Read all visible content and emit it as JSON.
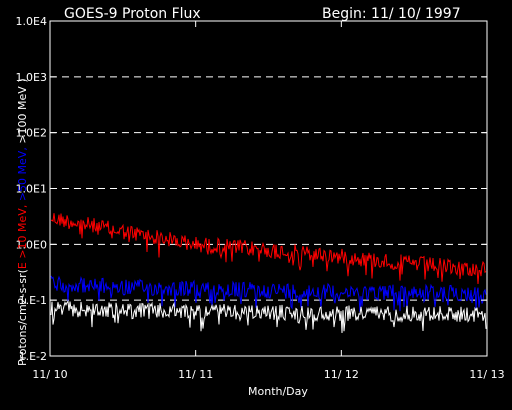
{
  "chart_data": {
    "type": "line",
    "title": "GOES-9 Proton Flux",
    "begin_label": "Begin: 11/ 10/ 1997",
    "xlabel": "Month/Day",
    "ylabel_parts": [
      {
        "text": "Protons/cm2-s-sr(",
        "color": "#ffffff"
      },
      {
        "text": "E >10 MeV, ",
        "color": "#ff0000"
      },
      {
        "text": ">50 MeV, ",
        "color": "#0000ff"
      },
      {
        "text": ">100 MeV )",
        "color": "#ffffff"
      }
    ],
    "y_scale": "log",
    "ylim": [
      0.01,
      10000
    ],
    "y_ticks": [
      {
        "value": 0.01,
        "label": "1.E-2"
      },
      {
        "value": 0.1,
        "label": "1.E-1"
      },
      {
        "value": 1,
        "label": "1.0E0"
      },
      {
        "value": 10,
        "label": "1.0E1"
      },
      {
        "value": 100,
        "label": "1.0E2"
      },
      {
        "value": 1000,
        "label": "1.0E3"
      },
      {
        "value": 10000,
        "label": "1.0E4"
      }
    ],
    "xlim": [
      "1997-11-10",
      "1997-11-13"
    ],
    "x_ticks": [
      {
        "value": "1997-11-10",
        "label": "11/ 10"
      },
      {
        "value": "1997-11-11",
        "label": "11/ 11"
      },
      {
        "value": "1997-11-12",
        "label": "11/ 12"
      },
      {
        "value": "1997-11-13",
        "label": "11/ 13"
      }
    ],
    "grid": "dashed horizontal at decades",
    "series": [
      {
        "color": "#ff0000",
        "x": [
          "1997-11-10",
          "1997-11-10T12:00",
          "1997-11-11",
          "1997-11-11T12:00",
          "1997-11-12",
          "1997-11-12T12:00",
          "1997-11-13"
        ],
        "y": [
          3.0,
          1.7,
          1.0,
          0.8,
          0.6,
          0.45,
          0.35
        ]
      },
      {
        "color": "#0000ff",
        "x": [
          "1997-11-10",
          "1997-11-10T12:00",
          "1997-11-11",
          "1997-11-11T12:00",
          "1997-11-12",
          "1997-11-12T12:00",
          "1997-11-13"
        ],
        "y": [
          0.2,
          0.17,
          0.16,
          0.15,
          0.14,
          0.14,
          0.13
        ]
      },
      {
        "color": "#ffffff",
        "x": [
          "1997-11-10",
          "1997-11-10T12:00",
          "1997-11-11",
          "1997-11-11T12:00",
          "1997-11-12",
          "1997-11-12T12:00",
          "1997-11-13"
        ],
        "y": [
          0.07,
          0.065,
          0.062,
          0.06,
          0.058,
          0.058,
          0.055
        ]
      }
    ]
  }
}
